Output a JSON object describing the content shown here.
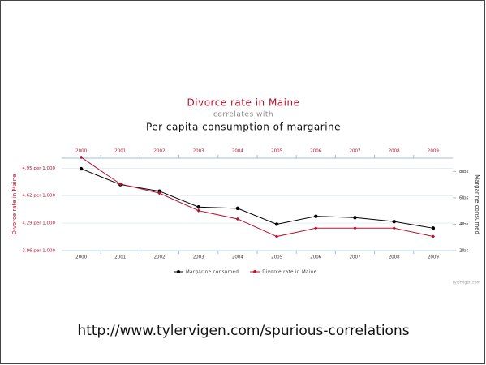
{
  "chart_data": {
    "type": "line",
    "title": "Divorce rate in Maine",
    "subtitle": "correlates with",
    "title2": "Per capita consumption of margarine",
    "categories": [
      "2000",
      "2001",
      "2002",
      "2003",
      "2004",
      "2005",
      "2006",
      "2007",
      "2008",
      "2009"
    ],
    "series": [
      {
        "name": "Margarine consumed",
        "color": "#000000",
        "axis": "y2",
        "values": [
          8.2,
          7.0,
          6.5,
          5.3,
          5.2,
          4.0,
          4.6,
          4.5,
          4.2,
          3.7
        ]
      },
      {
        "name": "Divorce rate in Maine",
        "color": "#b5122e",
        "values": [
          5.08,
          4.76,
          4.65,
          4.44,
          4.34,
          4.13,
          4.23,
          4.23,
          4.23,
          4.13
        ]
      }
    ],
    "ylabel": "Divorce rate in Maine",
    "y2label": "Margarine consumed",
    "ylim": [
      3.96,
      5.07
    ],
    "yticks": [
      {
        "value": 3.96,
        "label": "3.96 per 1,000"
      },
      {
        "value": 4.29,
        "label": "4.29 per 1,000"
      },
      {
        "value": 4.62,
        "label": "4.62 per 1,000"
      },
      {
        "value": 4.95,
        "label": "4.95 per 1,000"
      }
    ],
    "y2lim": [
      2,
      9
    ],
    "y2ticks": [
      {
        "value": 2,
        "label": "2lbs"
      },
      {
        "value": 4,
        "label": "4lbs"
      },
      {
        "value": 6,
        "label": "6lbs"
      },
      {
        "value": 8,
        "label": "8lbs"
      }
    ],
    "grid": true,
    "credit": "tylervigen.com",
    "footer": "http://www.tylervigen.com/spurious-correlations"
  }
}
